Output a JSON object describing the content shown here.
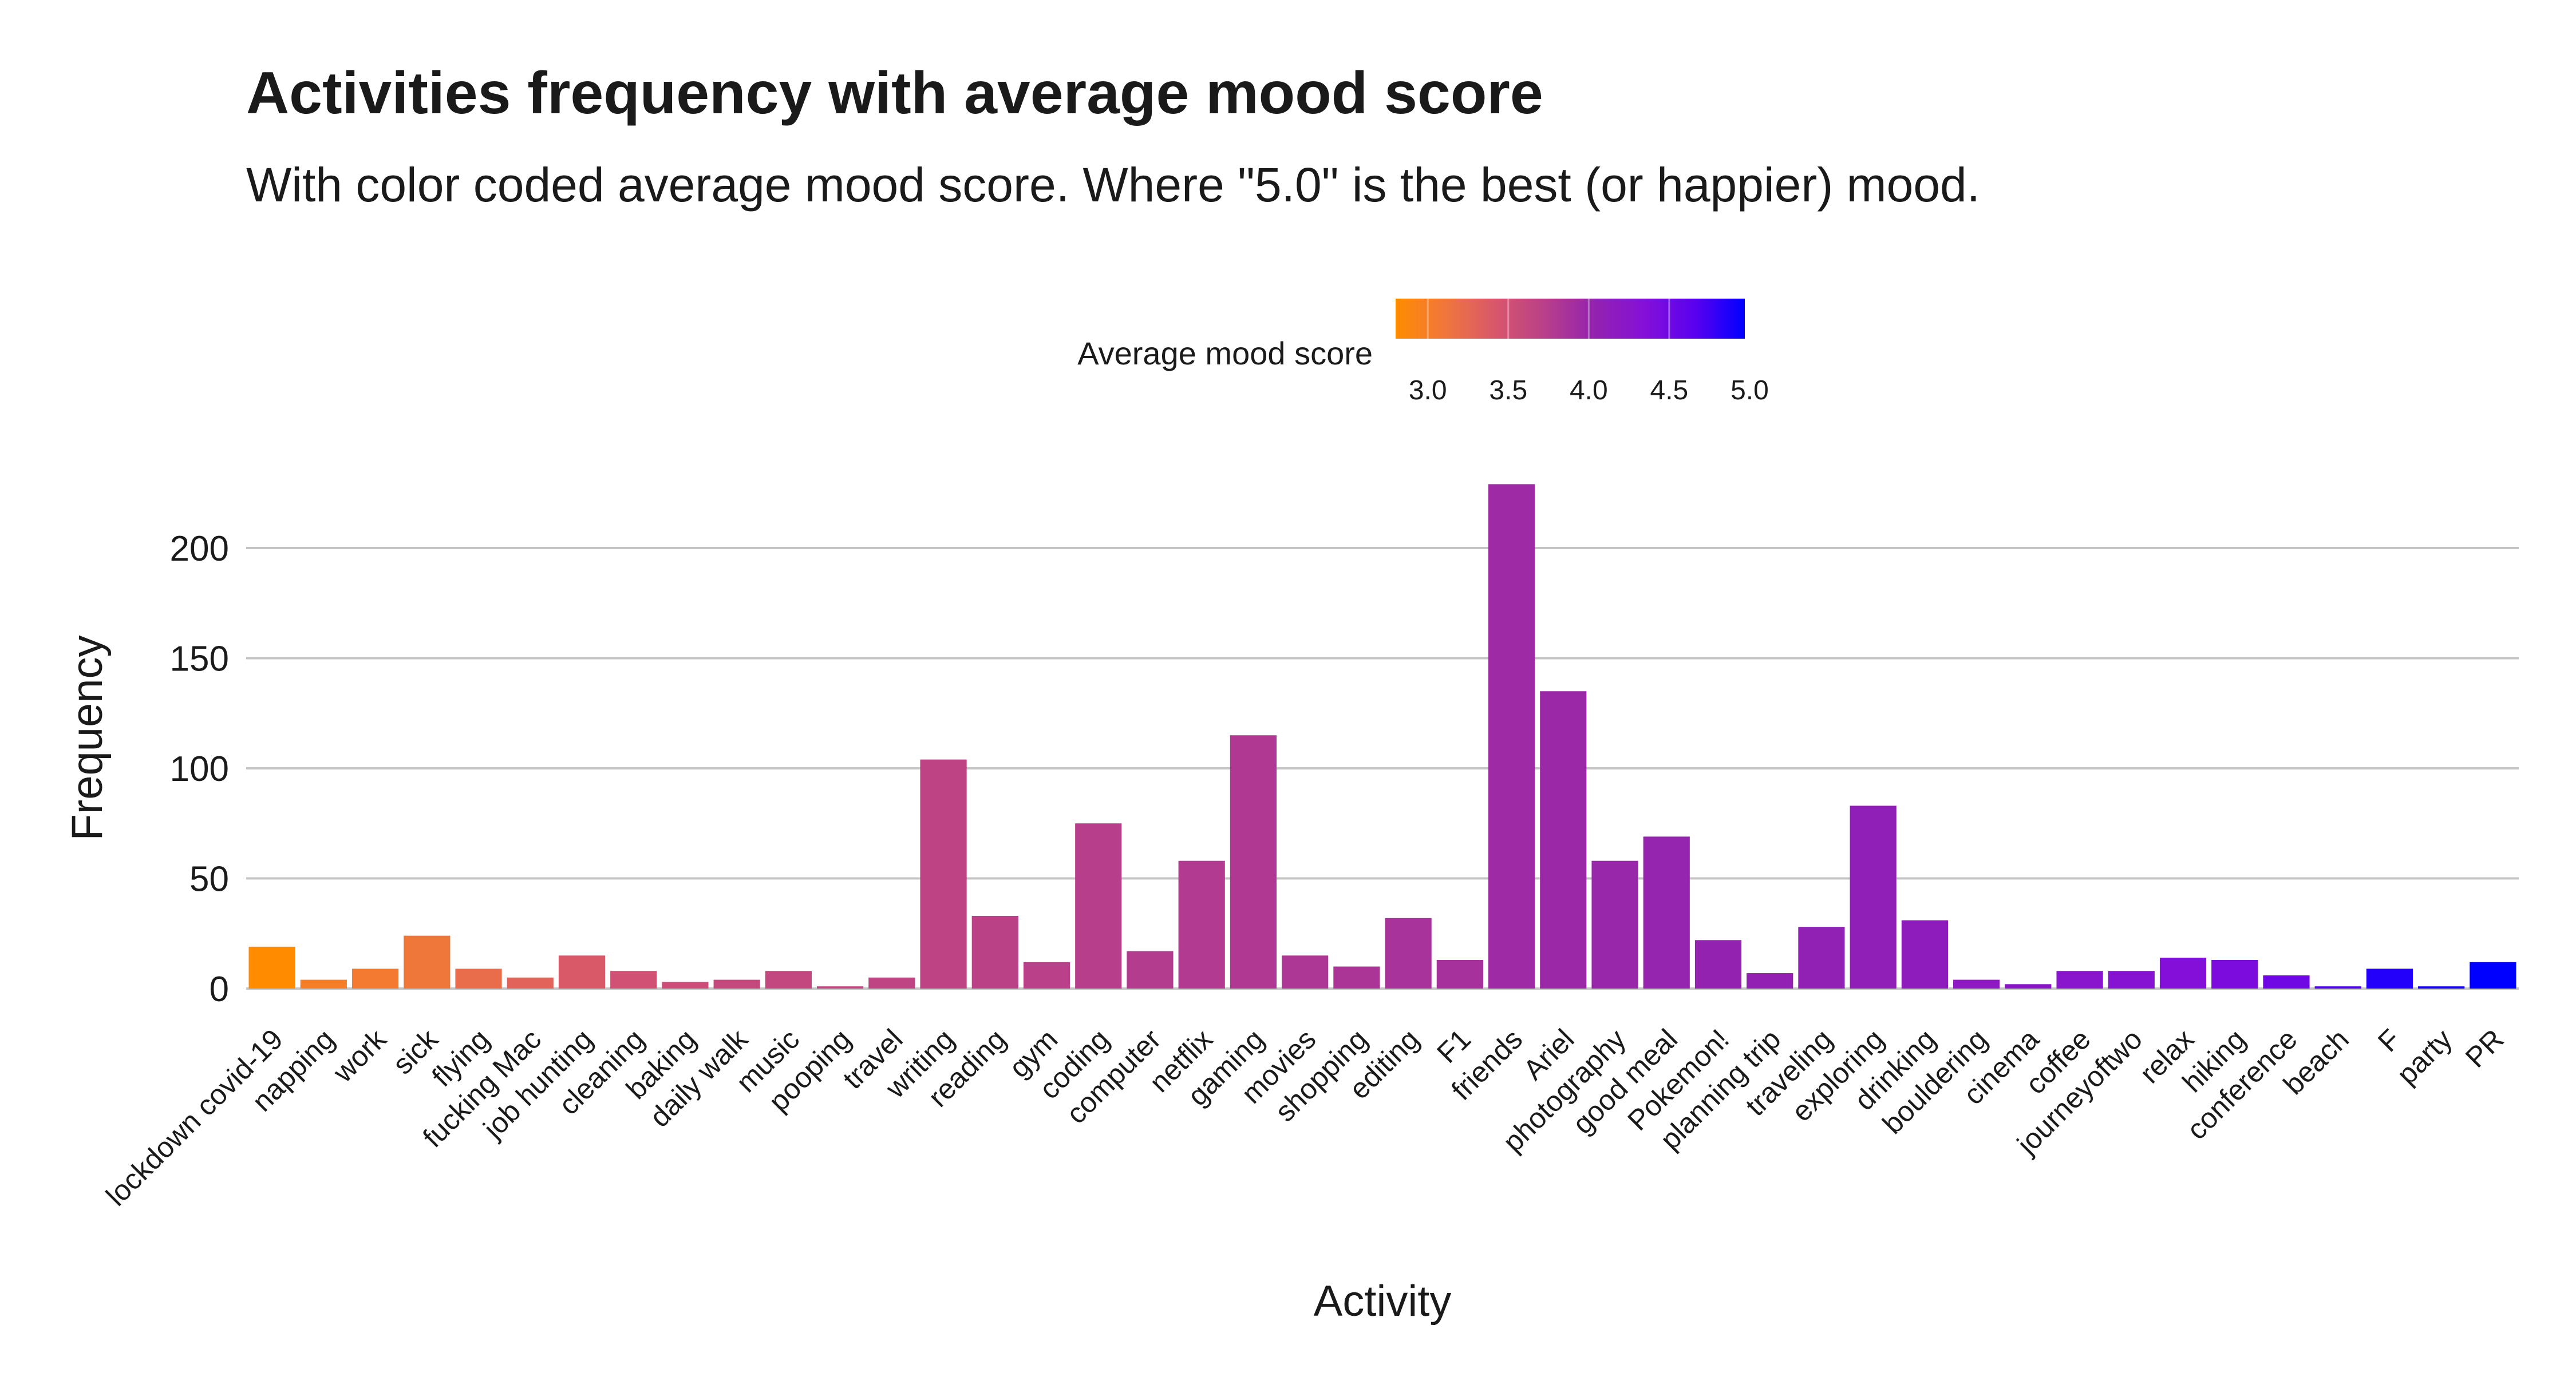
{
  "chart_data": {
    "type": "bar",
    "title": "Activities frequency with average mood score",
    "subtitle": "With color coded average mood score. Where \"5.0\" is the best (or happier) mood.",
    "xlabel": "Activity",
    "ylabel": "Frequency",
    "ylim": [
      0,
      235
    ],
    "yticks": [
      0,
      50,
      100,
      150,
      200
    ],
    "grid": true,
    "legend": {
      "title": "Average mood score",
      "placement": "top-center",
      "type": "colorbar",
      "range": [
        2.8,
        4.97
      ],
      "ticks": [
        "3.0",
        "3.5",
        "4.0",
        "4.5",
        "5.0"
      ],
      "colors": [
        "#ff8c00",
        "#f0763c",
        "#d8576b",
        "#b83f8a",
        "#9322b0",
        "#8510d8",
        "#5a00ef",
        "#0000ff"
      ]
    },
    "bars": [
      {
        "category": "lockdown covid-19",
        "value": 19,
        "mood": 2.8
      },
      {
        "category": "napping",
        "value": 4,
        "mood": 3.0
      },
      {
        "category": "work",
        "value": 9,
        "mood": 3.05
      },
      {
        "category": "sick",
        "value": 24,
        "mood": 3.1
      },
      {
        "category": "flying",
        "value": 9,
        "mood": 3.2
      },
      {
        "category": "fucking Mac",
        "value": 5,
        "mood": 3.3
      },
      {
        "category": "job hunting",
        "value": 15,
        "mood": 3.4
      },
      {
        "category": "cleaning",
        "value": 8,
        "mood": 3.5
      },
      {
        "category": "baking",
        "value": 3,
        "mood": 3.55
      },
      {
        "category": "daily walk",
        "value": 4,
        "mood": 3.6
      },
      {
        "category": "music",
        "value": 8,
        "mood": 3.62
      },
      {
        "category": "pooping",
        "value": 1,
        "mood": 3.64
      },
      {
        "category": "travel",
        "value": 5,
        "mood": 3.66
      },
      {
        "category": "writing",
        "value": 104,
        "mood": 3.68
      },
      {
        "category": "reading",
        "value": 33,
        "mood": 3.7
      },
      {
        "category": "gym",
        "value": 12,
        "mood": 3.72
      },
      {
        "category": "coding",
        "value": 75,
        "mood": 3.74
      },
      {
        "category": "computer",
        "value": 17,
        "mood": 3.76
      },
      {
        "category": "netflix",
        "value": 58,
        "mood": 3.78
      },
      {
        "category": "gaming",
        "value": 115,
        "mood": 3.8
      },
      {
        "category": "movies",
        "value": 15,
        "mood": 3.82
      },
      {
        "category": "shopping",
        "value": 10,
        "mood": 3.84
      },
      {
        "category": "editing",
        "value": 32,
        "mood": 3.86
      },
      {
        "category": "F1",
        "value": 13,
        "mood": 3.88
      },
      {
        "category": "friends",
        "value": 229,
        "mood": 3.95
      },
      {
        "category": "Ariel",
        "value": 135,
        "mood": 3.97
      },
      {
        "category": "photography",
        "value": 58,
        "mood": 3.99
      },
      {
        "category": "good meal",
        "value": 69,
        "mood": 4.02
      },
      {
        "category": "Pokemon!",
        "value": 22,
        "mood": 4.04
      },
      {
        "category": "planning trip",
        "value": 7,
        "mood": 4.06
      },
      {
        "category": "traveling",
        "value": 28,
        "mood": 4.08
      },
      {
        "category": "exploring",
        "value": 83,
        "mood": 4.1
      },
      {
        "category": "drinking",
        "value": 31,
        "mood": 4.14
      },
      {
        "category": "bouldering",
        "value": 4,
        "mood": 4.18
      },
      {
        "category": "cinema",
        "value": 2,
        "mood": 4.22
      },
      {
        "category": "coffee",
        "value": 8,
        "mood": 4.26
      },
      {
        "category": "journeyoftwo",
        "value": 8,
        "mood": 4.3
      },
      {
        "category": "relax",
        "value": 14,
        "mood": 4.36
      },
      {
        "category": "hiking",
        "value": 13,
        "mood": 4.42
      },
      {
        "category": "conference",
        "value": 6,
        "mood": 4.5
      },
      {
        "category": "beach",
        "value": 1,
        "mood": 4.7
      },
      {
        "category": "F",
        "value": 9,
        "mood": 4.85
      },
      {
        "category": "party",
        "value": 1,
        "mood": 4.9
      },
      {
        "category": "PR",
        "value": 12,
        "mood": 4.97
      }
    ]
  }
}
